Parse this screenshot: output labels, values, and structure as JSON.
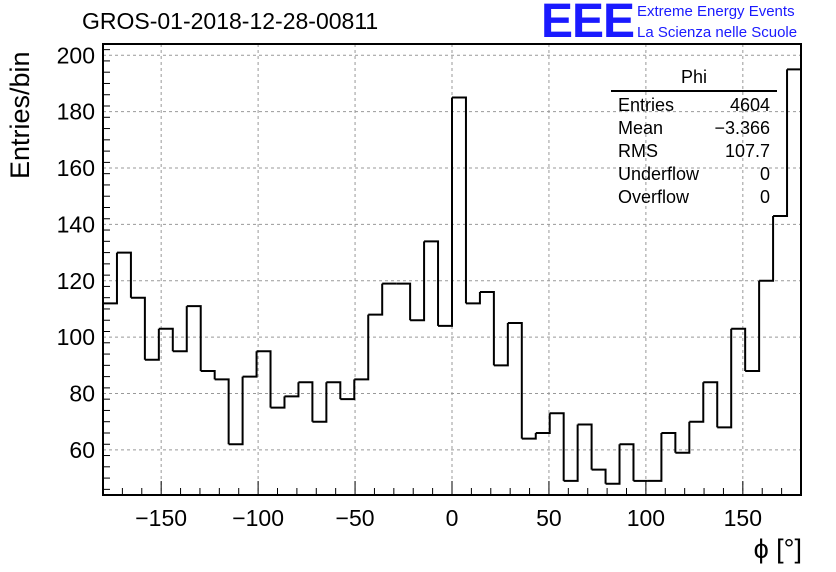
{
  "header": {
    "title": "GROS-01-2018-12-28-00811",
    "logo": "EEE",
    "logo_line1": "Extreme Energy Events",
    "logo_line2": "La Scienza nelle Scuole"
  },
  "stats_box": {
    "title": "Phi",
    "rows": [
      {
        "label": "Entries",
        "value": "4604"
      },
      {
        "label": "Mean",
        "value": "−3.366"
      },
      {
        "label": "RMS",
        "value": "107.7"
      },
      {
        "label": "Underflow",
        "value": "0"
      },
      {
        "label": "Overflow",
        "value": "0"
      }
    ]
  },
  "colors": {
    "line": "#000000",
    "grid": "#999999",
    "logo": "#1a1aff"
  },
  "chart_data": {
    "type": "histogram",
    "title": "GROS-01-2018-12-28-00811",
    "xlabel": "ϕ [°]",
    "ylabel": "Entries/bin",
    "xlim": [
      -180,
      180
    ],
    "ylim": [
      44,
      204
    ],
    "bin_width": 7.2,
    "bin_edges_start": -180,
    "values": [
      112,
      130,
      114,
      92,
      103,
      95,
      111,
      88,
      85,
      62,
      86,
      95,
      75,
      79,
      84,
      70,
      84,
      78,
      85,
      108,
      119,
      119,
      106,
      134,
      104,
      185,
      112,
      116,
      90,
      105,
      64,
      66,
      73,
      49,
      69,
      53,
      48,
      62,
      49,
      49,
      66,
      59,
      70,
      84,
      68,
      103,
      88,
      120,
      143,
      195
    ],
    "x_ticks": [
      -150,
      -100,
      -50,
      0,
      50,
      100,
      150
    ],
    "x_tick_labels": [
      "−150",
      "−100",
      "−50",
      "0",
      "50",
      "100",
      "150"
    ],
    "y_ticks": [
      60,
      80,
      100,
      120,
      140,
      160,
      180,
      200
    ],
    "y_tick_labels": [
      "60",
      "80",
      "100",
      "120",
      "140",
      "160",
      "180",
      "200"
    ],
    "grid": true,
    "legend_position": "top-right"
  }
}
